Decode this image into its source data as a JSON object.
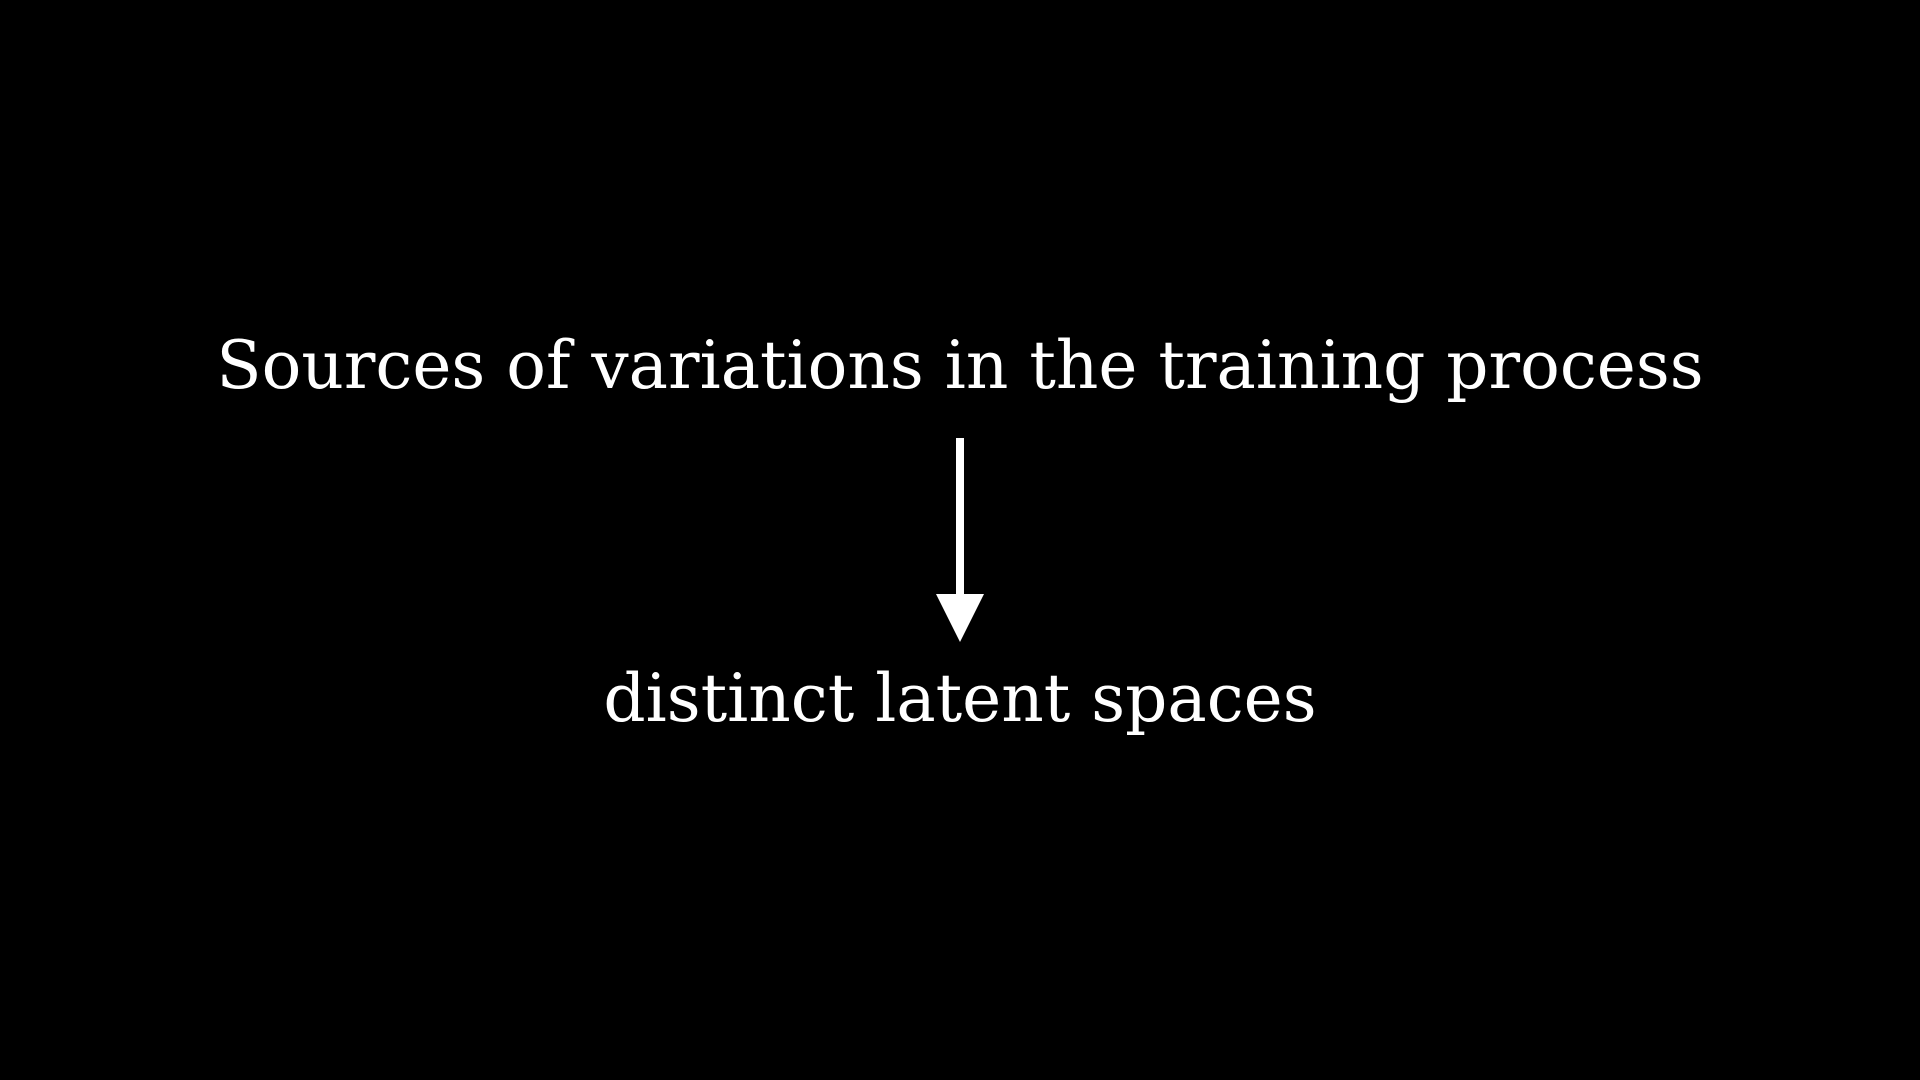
{
  "diagram": {
    "source_text": "Sources of variations in the training process",
    "target_text": "distinct latent spaces",
    "arrow_icon": "arrow-down-icon"
  },
  "colors": {
    "background": "#000000",
    "foreground": "#ffffff"
  }
}
